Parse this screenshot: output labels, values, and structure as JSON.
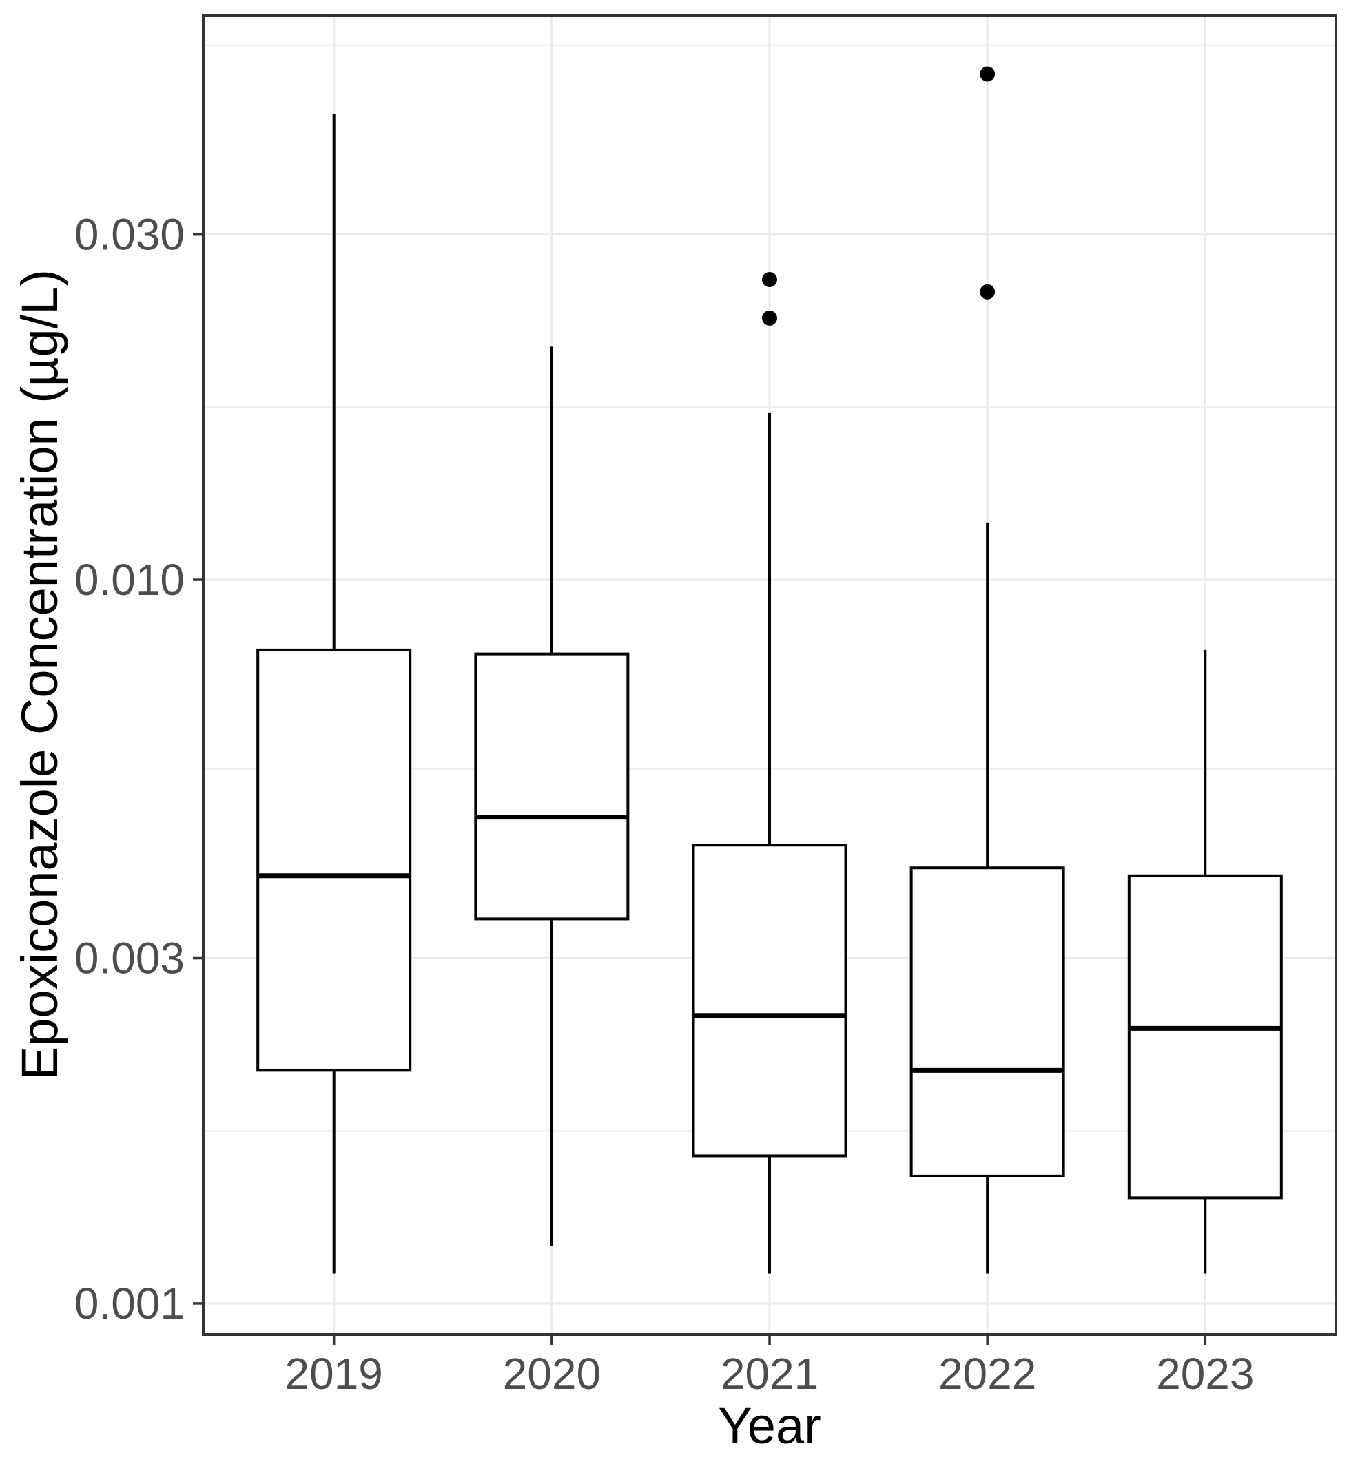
{
  "chart_data": {
    "type": "boxplot",
    "title": "",
    "xlabel": "Year",
    "ylabel": "Epoxiconazole Concentration (µg/L)",
    "categories": [
      "2019",
      "2020",
      "2021",
      "2022",
      "2023"
    ],
    "series": [
      {
        "category": "2019",
        "min": 0.0011,
        "q1": 0.0021,
        "median": 0.0039,
        "q3": 0.008,
        "max": 0.044,
        "outliers": []
      },
      {
        "category": "2020",
        "min": 0.0012,
        "q1": 0.0034,
        "median": 0.0047,
        "q3": 0.0079,
        "max": 0.021,
        "outliers": []
      },
      {
        "category": "2021",
        "min": 0.0011,
        "q1": 0.0016,
        "median": 0.0025,
        "q3": 0.0043,
        "max": 0.017,
        "outliers": [
          0.023,
          0.026
        ]
      },
      {
        "category": "2022",
        "min": 0.0011,
        "q1": 0.0015,
        "median": 0.0021,
        "q3": 0.004,
        "max": 0.012,
        "outliers": [
          0.025,
          0.05
        ]
      },
      {
        "category": "2023",
        "min": 0.0011,
        "q1": 0.0014,
        "median": 0.0024,
        "q3": 0.0039,
        "max": 0.008,
        "outliers": []
      }
    ],
    "y_axis": {
      "scale": "log10",
      "ticks": [
        0.001,
        0.003,
        0.01,
        0.03
      ],
      "tick_labels": [
        "0.001",
        "0.003",
        "0.010",
        "0.030"
      ],
      "minor_ticks": [
        0.0017321,
        0.0054772,
        0.017321,
        0.054772
      ],
      "domain": [
        0.000906,
        0.0603
      ]
    },
    "x_axis": {
      "tick_labels": [
        "2019",
        "2020",
        "2021",
        "2022",
        "2023"
      ]
    },
    "layout": {
      "grid": true,
      "legend": "none",
      "panel_background": "#ffffff"
    },
    "colors": {
      "grid_major": "#ebebeb",
      "grid_minor": "#efefef",
      "panel_border": "#333333",
      "box_stroke": "#000000",
      "box_fill": "#ffffff",
      "outlier_fill": "#000000",
      "axis_text": "#4d4d4d",
      "axis_title": "#000000",
      "tick_mark": "#333333"
    }
  }
}
